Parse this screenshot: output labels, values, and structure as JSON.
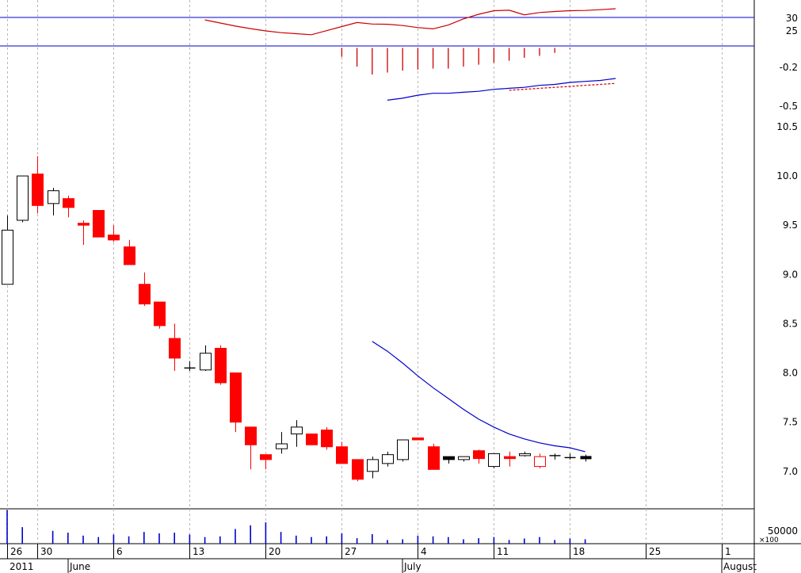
{
  "chart_data": [
    {
      "type": "line",
      "panel": "rsi",
      "ylim": [
        18,
        36
      ],
      "reference_lines": [
        30,
        25
      ],
      "tick_labels": [
        "30",
        "25"
      ],
      "line_color": "#cc0000",
      "reference_color": "#0000cc",
      "x": [
        13,
        14,
        15,
        16,
        17,
        18,
        19,
        20,
        21,
        22,
        23,
        24,
        25,
        26,
        27,
        28,
        29,
        30,
        31,
        32,
        33,
        34,
        35,
        36,
        37,
        38,
        39,
        40
      ],
      "values": [
        28.2,
        27.0,
        25.8,
        24.8,
        23.9,
        23.2,
        22.8,
        22.4,
        24.0,
        25.6,
        27.2,
        26.6,
        26.5,
        26.0,
        25.2,
        24.7,
        26.2,
        28.6,
        30.4,
        31.8,
        32.0,
        30.2,
        31.1,
        31.5,
        31.8,
        31.9,
        32.2,
        32.6
      ]
    },
    {
      "type": "bar",
      "panel": "macd-histogram",
      "ylim": [
        -0.68,
        0.02
      ],
      "tick_labels": [
        "-0.2",
        "-0.5"
      ],
      "bar_color": "#cc0000",
      "x": [
        22,
        23,
        24,
        25,
        26,
        27,
        28,
        29,
        30,
        31,
        32,
        33,
        34,
        35,
        36,
        37
      ],
      "values": [
        -0.09,
        -0.19,
        -0.27,
        -0.25,
        -0.23,
        -0.22,
        -0.21,
        -0.21,
        -0.19,
        -0.17,
        -0.15,
        -0.13,
        -0.1,
        -0.08,
        -0.05,
        -0.01
      ]
    },
    {
      "type": "line",
      "panel": "macd",
      "ylim": [
        -0.68,
        0.02
      ],
      "series": [
        {
          "color": "#0000cc",
          "style": "solid",
          "x": [
            25,
            26,
            27,
            28,
            29,
            30,
            31,
            32,
            33,
            34,
            35,
            36,
            37,
            38,
            39,
            40
          ],
          "values": [
            -0.53,
            -0.51,
            -0.48,
            -0.46,
            -0.46,
            -0.45,
            -0.44,
            -0.42,
            -0.41,
            -0.4,
            -0.38,
            -0.37,
            -0.35,
            -0.34,
            -0.33,
            -0.31
          ]
        },
        {
          "color": "#cc0000",
          "style": "dashed",
          "x": [
            33,
            34,
            35,
            36,
            37,
            38,
            39,
            40
          ],
          "values": [
            -0.43,
            -0.42,
            -0.41,
            -0.4,
            -0.39,
            -0.38,
            -0.37,
            -0.36
          ]
        }
      ]
    },
    {
      "type": "candlestick",
      "panel": "price",
      "ylim": [
        6.62,
        10.62
      ],
      "y_ticks": [
        7.0,
        7.5,
        8.0,
        8.5,
        9.0,
        9.5,
        10.0,
        10.5
      ],
      "tick_labels": [
        "7.0",
        "7.5",
        "8.0",
        "8.5",
        "9.0",
        "9.5",
        "10.0",
        "10.5"
      ],
      "up_color": "#ffffff",
      "down_color": "#ff0000",
      "outline_color": "#000000",
      "x_day_labels": [
        "26",
        "30",
        "6",
        "13",
        "20",
        "27",
        "4",
        "11",
        "18",
        "25",
        "1"
      ],
      "x_day_index": [
        0,
        2,
        7,
        12,
        17,
        22,
        27,
        32,
        37,
        42,
        47
      ],
      "x_year_label": "2011",
      "x_month_labels": [
        "June",
        "July",
        "August"
      ],
      "x_month_index": [
        4,
        26,
        47
      ],
      "candles": [
        [
          0,
          8.9,
          9.6,
          8.9,
          9.45
        ],
        [
          1,
          9.55,
          10.0,
          9.53,
          10.0
        ],
        [
          2,
          10.02,
          10.2,
          9.62,
          9.7
        ],
        [
          3,
          9.72,
          9.88,
          9.6,
          9.85
        ],
        [
          4,
          9.77,
          9.8,
          9.58,
          9.68
        ],
        [
          5,
          9.52,
          9.55,
          9.3,
          9.5
        ],
        [
          6,
          9.65,
          9.65,
          9.38,
          9.38
        ],
        [
          7,
          9.4,
          9.5,
          9.33,
          9.35
        ],
        [
          8,
          9.28,
          9.35,
          9.1,
          9.1
        ],
        [
          9,
          8.9,
          9.02,
          8.68,
          8.7
        ],
        [
          10,
          8.72,
          8.72,
          8.45,
          8.48
        ],
        [
          11,
          8.35,
          8.5,
          8.02,
          8.15
        ],
        [
          12,
          8.05,
          8.12,
          8.02,
          8.05
        ],
        [
          13,
          8.03,
          8.28,
          8.02,
          8.2
        ],
        [
          14,
          8.25,
          8.28,
          7.88,
          7.9
        ],
        [
          15,
          8.0,
          8.0,
          7.4,
          7.5
        ],
        [
          16,
          7.45,
          7.45,
          7.02,
          7.27
        ],
        [
          17,
          7.17,
          7.17,
          7.02,
          7.12
        ],
        [
          18,
          7.23,
          7.4,
          7.18,
          7.28
        ],
        [
          19,
          7.38,
          7.52,
          7.25,
          7.45
        ],
        [
          20,
          7.38,
          7.38,
          7.27,
          7.27
        ],
        [
          21,
          7.42,
          7.45,
          7.22,
          7.25
        ],
        [
          22,
          7.25,
          7.3,
          7.08,
          7.08
        ],
        [
          23,
          7.12,
          7.12,
          6.9,
          6.92
        ],
        [
          24,
          7.0,
          7.15,
          6.93,
          7.12
        ],
        [
          25,
          7.08,
          7.2,
          7.05,
          7.17
        ],
        [
          26,
          7.12,
          7.32,
          7.1,
          7.32
        ],
        [
          27,
          7.34,
          7.34,
          7.32,
          7.32
        ],
        [
          28,
          7.25,
          7.28,
          7.02,
          7.02
        ],
        [
          29,
          7.12,
          7.15,
          7.08,
          7.15
        ],
        [
          30,
          7.12,
          7.15,
          7.1,
          7.15
        ],
        [
          31,
          7.21,
          7.22,
          7.08,
          7.13
        ],
        [
          32,
          7.05,
          7.17,
          7.03,
          7.18
        ],
        [
          33,
          7.15,
          7.2,
          7.05,
          7.13
        ],
        [
          34,
          7.16,
          7.2,
          7.15,
          7.18
        ],
        [
          35,
          7.15,
          7.18,
          7.03,
          7.05
        ],
        [
          36,
          7.16,
          7.18,
          7.12,
          7.16
        ],
        [
          37,
          7.14,
          7.18,
          7.12,
          7.14
        ],
        [
          38,
          7.14,
          7.17,
          7.1,
          7.14
        ]
      ],
      "black_candles": [
        29,
        38
      ],
      "red_outline_candles": [
        35
      ],
      "moving_average": {
        "color": "#0000cc",
        "x": [
          24,
          25,
          26,
          27,
          28,
          29,
          30,
          31,
          32,
          33,
          34,
          35,
          36,
          37,
          38
        ],
        "values": [
          8.32,
          8.22,
          8.1,
          7.97,
          7.85,
          7.74,
          7.63,
          7.53,
          7.45,
          7.38,
          7.33,
          7.29,
          7.26,
          7.24,
          7.2
        ]
      }
    },
    {
      "type": "bar",
      "panel": "volume",
      "ylim": [
        0,
        95000
      ],
      "tick_labels": [
        "50000"
      ],
      "multiplier_label": "×100",
      "bar_color": "#0000cc",
      "x": [
        0,
        1,
        3,
        4,
        5,
        6,
        7,
        8,
        9,
        10,
        11,
        12,
        13,
        14,
        15,
        16,
        17,
        18,
        19,
        20,
        21,
        22,
        23,
        24,
        25,
        26,
        27,
        28,
        29,
        30,
        31,
        32,
        33,
        34,
        35,
        36,
        37,
        38
      ],
      "values": [
        92000,
        45000,
        35000,
        30000,
        22000,
        18000,
        25000,
        20000,
        32000,
        28000,
        30000,
        25000,
        18000,
        20000,
        40000,
        50000,
        58000,
        32000,
        22000,
        18000,
        20000,
        28000,
        15000,
        26000,
        10000,
        12000,
        22000,
        20000,
        18000,
        12000,
        15000,
        18000,
        10000,
        14000,
        18000,
        10000,
        14000,
        12000
      ]
    }
  ]
}
